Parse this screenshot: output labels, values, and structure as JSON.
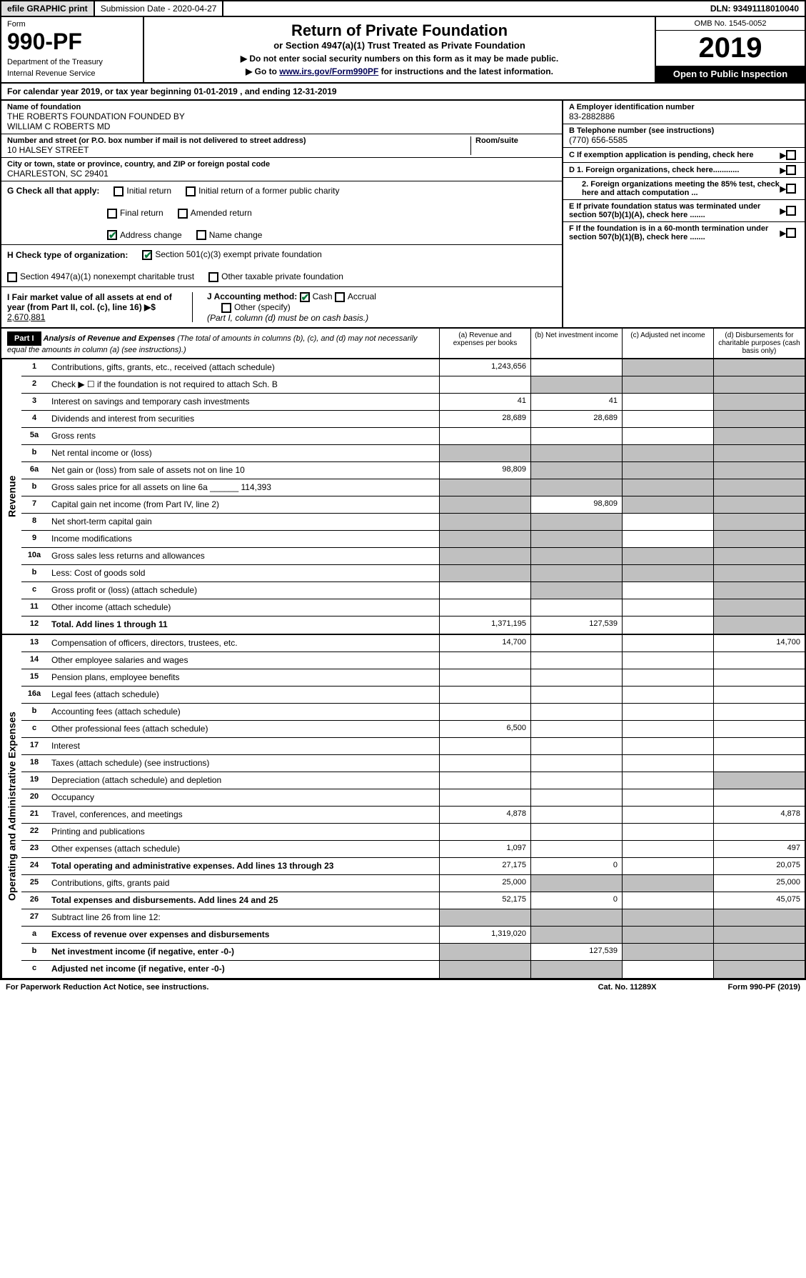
{
  "topbar": {
    "efile": "efile GRAPHIC print",
    "submission": "Submission Date - 2020-04-27",
    "dln": "DLN: 93491118010040"
  },
  "header": {
    "form_label": "Form",
    "form_no": "990-PF",
    "dept1": "Department of the Treasury",
    "dept2": "Internal Revenue Service",
    "title": "Return of Private Foundation",
    "subtitle": "or Section 4947(a)(1) Trust Treated as Private Foundation",
    "instr1": "▶ Do not enter social security numbers on this form as it may be made public.",
    "instr2_pre": "▶ Go to ",
    "instr2_link": "www.irs.gov/Form990PF",
    "instr2_post": " for instructions and the latest information.",
    "omb": "OMB No. 1545-0052",
    "year": "2019",
    "open": "Open to Public Inspection"
  },
  "calyear": {
    "pre": "For calendar year 2019, or tax year beginning ",
    "begin": "01-01-2019",
    "mid": " , and ending ",
    "end": "12-31-2019"
  },
  "info": {
    "name_label": "Name of foundation",
    "name1": "THE ROBERTS FOUNDATION FOUNDED BY",
    "name2": "WILLIAM C ROBERTS MD",
    "addr_label": "Number and street (or P.O. box number if mail is not delivered to street address)",
    "addr": "10 HALSEY STREET",
    "room_label": "Room/suite",
    "city_label": "City or town, state or province, country, and ZIP or foreign postal code",
    "city": "CHARLESTON, SC  29401",
    "ein_label": "A Employer identification number",
    "ein": "83-2882886",
    "phone_label": "B Telephone number (see instructions)",
    "phone": "(770) 656-5585",
    "c_label": "C If exemption application is pending, check here",
    "d1": "D 1. Foreign organizations, check here............",
    "d2": "2. Foreign organizations meeting the 85% test, check here and attach computation ...",
    "e_label": "E If private foundation status was terminated under section 507(b)(1)(A), check here .......",
    "f_label": "F If the foundation is in a 60-month termination under section 507(b)(1)(B), check here .......",
    "g_label": "G Check all that apply:",
    "g_initial": "Initial return",
    "g_initial_former": "Initial return of a former public charity",
    "g_final": "Final return",
    "g_amended": "Amended return",
    "g_address": "Address change",
    "g_name": "Name change",
    "h_label": "H Check type of organization:",
    "h_501c3": "Section 501(c)(3) exempt private foundation",
    "h_4947": "Section 4947(a)(1) nonexempt charitable trust",
    "h_other_tax": "Other taxable private foundation",
    "i_label": "I Fair market value of all assets at end of year (from Part II, col. (c), line 16) ▶$",
    "i_val": "2,670,881",
    "j_label": "J Accounting method:",
    "j_cash": "Cash",
    "j_accrual": "Accrual",
    "j_other": "Other (specify)",
    "j_note": "(Part I, column (d) must be on cash basis.)"
  },
  "part1": {
    "label": "Part I",
    "title": "Analysis of Revenue and Expenses",
    "title_note": "(The total of amounts in columns (b), (c), and (d) may not necessarily equal the amounts in column (a) (see instructions).)",
    "col_a": "(a) Revenue and expenses per books",
    "col_b": "(b) Net investment income",
    "col_c": "(c) Adjusted net income",
    "col_d": "(d) Disbursements for charitable purposes (cash basis only)"
  },
  "sections": {
    "revenue": "Revenue",
    "expenses": "Operating and Administrative Expenses"
  },
  "rows": [
    {
      "n": "1",
      "d": "Contributions, gifts, grants, etc., received (attach schedule)",
      "a": "1,243,656",
      "b": "",
      "c": "s",
      "dd": "s"
    },
    {
      "n": "2",
      "d": "Check ▶ ☐ if the foundation is not required to attach Sch. B",
      "a": "",
      "b": "s",
      "c": "s",
      "dd": "s"
    },
    {
      "n": "3",
      "d": "Interest on savings and temporary cash investments",
      "a": "41",
      "b": "41",
      "c": "",
      "dd": "s"
    },
    {
      "n": "4",
      "d": "Dividends and interest from securities",
      "a": "28,689",
      "b": "28,689",
      "c": "",
      "dd": "s"
    },
    {
      "n": "5a",
      "d": "Gross rents",
      "a": "",
      "b": "",
      "c": "",
      "dd": "s"
    },
    {
      "n": "b",
      "d": "Net rental income or (loss)",
      "a": "s",
      "b": "s",
      "c": "s",
      "dd": "s"
    },
    {
      "n": "6a",
      "d": "Net gain or (loss) from sale of assets not on line 10",
      "a": "98,809",
      "b": "s",
      "c": "s",
      "dd": "s"
    },
    {
      "n": "b",
      "d": "Gross sales price for all assets on line 6a ______ 114,393",
      "a": "s",
      "b": "s",
      "c": "s",
      "dd": "s"
    },
    {
      "n": "7",
      "d": "Capital gain net income (from Part IV, line 2)",
      "a": "s",
      "b": "98,809",
      "c": "s",
      "dd": "s"
    },
    {
      "n": "8",
      "d": "Net short-term capital gain",
      "a": "s",
      "b": "s",
      "c": "",
      "dd": "s"
    },
    {
      "n": "9",
      "d": "Income modifications",
      "a": "s",
      "b": "s",
      "c": "",
      "dd": "s"
    },
    {
      "n": "10a",
      "d": "Gross sales less returns and allowances",
      "a": "s",
      "b": "s",
      "c": "s",
      "dd": "s"
    },
    {
      "n": "b",
      "d": "Less: Cost of goods sold",
      "a": "s",
      "b": "s",
      "c": "s",
      "dd": "s"
    },
    {
      "n": "c",
      "d": "Gross profit or (loss) (attach schedule)",
      "a": "",
      "b": "s",
      "c": "",
      "dd": "s"
    },
    {
      "n": "11",
      "d": "Other income (attach schedule)",
      "a": "",
      "b": "",
      "c": "",
      "dd": "s"
    },
    {
      "n": "12",
      "d": "Total. Add lines 1 through 11",
      "a": "1,371,195",
      "b": "127,539",
      "c": "",
      "dd": "s",
      "bold": true
    }
  ],
  "rows2": [
    {
      "n": "13",
      "d": "Compensation of officers, directors, trustees, etc.",
      "a": "14,700",
      "b": "",
      "c": "",
      "dd": "14,700"
    },
    {
      "n": "14",
      "d": "Other employee salaries and wages",
      "a": "",
      "b": "",
      "c": "",
      "dd": ""
    },
    {
      "n": "15",
      "d": "Pension plans, employee benefits",
      "a": "",
      "b": "",
      "c": "",
      "dd": ""
    },
    {
      "n": "16a",
      "d": "Legal fees (attach schedule)",
      "a": "",
      "b": "",
      "c": "",
      "dd": ""
    },
    {
      "n": "b",
      "d": "Accounting fees (attach schedule)",
      "a": "",
      "b": "",
      "c": "",
      "dd": ""
    },
    {
      "n": "c",
      "d": "Other professional fees (attach schedule)",
      "a": "6,500",
      "b": "",
      "c": "",
      "dd": ""
    },
    {
      "n": "17",
      "d": "Interest",
      "a": "",
      "b": "",
      "c": "",
      "dd": ""
    },
    {
      "n": "18",
      "d": "Taxes (attach schedule) (see instructions)",
      "a": "",
      "b": "",
      "c": "",
      "dd": ""
    },
    {
      "n": "19",
      "d": "Depreciation (attach schedule) and depletion",
      "a": "",
      "b": "",
      "c": "",
      "dd": "s"
    },
    {
      "n": "20",
      "d": "Occupancy",
      "a": "",
      "b": "",
      "c": "",
      "dd": ""
    },
    {
      "n": "21",
      "d": "Travel, conferences, and meetings",
      "a": "4,878",
      "b": "",
      "c": "",
      "dd": "4,878"
    },
    {
      "n": "22",
      "d": "Printing and publications",
      "a": "",
      "b": "",
      "c": "",
      "dd": ""
    },
    {
      "n": "23",
      "d": "Other expenses (attach schedule)",
      "a": "1,097",
      "b": "",
      "c": "",
      "dd": "497"
    },
    {
      "n": "24",
      "d": "Total operating and administrative expenses. Add lines 13 through 23",
      "a": "27,175",
      "b": "0",
      "c": "",
      "dd": "20,075",
      "bold": true
    },
    {
      "n": "25",
      "d": "Contributions, gifts, grants paid",
      "a": "25,000",
      "b": "s",
      "c": "s",
      "dd": "25,000"
    },
    {
      "n": "26",
      "d": "Total expenses and disbursements. Add lines 24 and 25",
      "a": "52,175",
      "b": "0",
      "c": "",
      "dd": "45,075",
      "bold": true
    },
    {
      "n": "27",
      "d": "Subtract line 26 from line 12:",
      "a": "s",
      "b": "s",
      "c": "s",
      "dd": "s"
    },
    {
      "n": "a",
      "d": "Excess of revenue over expenses and disbursements",
      "a": "1,319,020",
      "b": "s",
      "c": "s",
      "dd": "s",
      "bold": true
    },
    {
      "n": "b",
      "d": "Net investment income (if negative, enter -0-)",
      "a": "s",
      "b": "127,539",
      "c": "s",
      "dd": "s",
      "bold": true
    },
    {
      "n": "c",
      "d": "Adjusted net income (if negative, enter -0-)",
      "a": "s",
      "b": "s",
      "c": "",
      "dd": "s",
      "bold": true
    }
  ],
  "footer": {
    "left": "For Paperwork Reduction Act Notice, see instructions.",
    "cat": "Cat. No. 11289X",
    "form": "Form 990-PF (2019)"
  },
  "colors": {
    "black": "#000000",
    "shade": "#c0c0c0",
    "check": "#0a7a3a",
    "link": "#0000cc"
  }
}
